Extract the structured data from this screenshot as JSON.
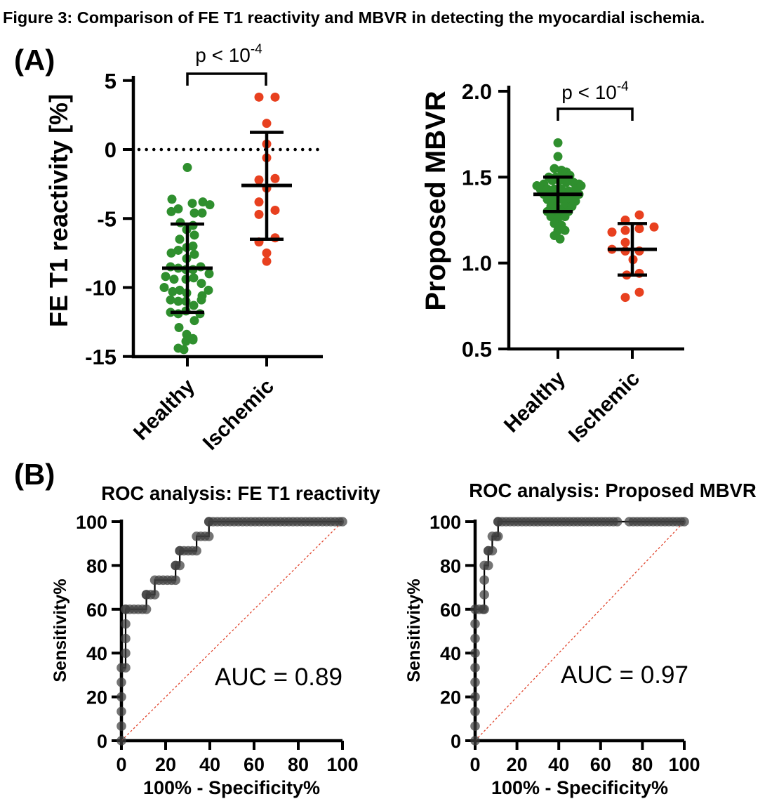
{
  "figure": {
    "title": "Figure 3: Comparison of FE T1 reactivity and MBVR in detecting the myocardial ischemia.",
    "panel_a_label": "(A)",
    "panel_b_label": "(B)"
  },
  "colors": {
    "healthy": "#2f8f2e",
    "ischemic": "#e8401f",
    "roc_dot": "#3f3f3f",
    "diagonal": "#e0442c",
    "axis": "#000000"
  },
  "chart_data": [
    {
      "id": "fet1",
      "type": "scatter",
      "ylabel": "FE T1 reactivity [%]",
      "categories": [
        "Healthy",
        "Ischemic"
      ],
      "yticks": [
        "5",
        "0",
        "-5",
        "-10",
        "-15"
      ],
      "ylim": [
        -15,
        5
      ],
      "zero_reference_line": 0,
      "significance": {
        "text": "p < 10",
        "sup": "-4"
      },
      "groups": [
        {
          "name": "Healthy",
          "color_key": "healthy",
          "median": -8.6,
          "whisker_high": -5.4,
          "whisker_low": -11.8,
          "points": [
            [
              0,
              -1.3
            ],
            [
              -22,
              -3.6
            ],
            [
              7,
              -3.9
            ],
            [
              22,
              -3.8
            ],
            [
              32,
              -4.0
            ],
            [
              -13,
              -4.3
            ],
            [
              -23,
              -4.5
            ],
            [
              10,
              -4.6
            ],
            [
              21,
              -4.6
            ],
            [
              -10,
              -5.3
            ],
            [
              8,
              -5.5
            ],
            [
              -1,
              -5.8
            ],
            [
              10,
              -6.2
            ],
            [
              -11,
              -6.5
            ],
            [
              8,
              -7.0
            ],
            [
              -1,
              -7.1
            ],
            [
              -13,
              -7.3
            ],
            [
              -23,
              -7.5
            ],
            [
              10,
              -7.6
            ],
            [
              -1,
              -7.9
            ],
            [
              -24,
              -8.5
            ],
            [
              -13,
              -8.6
            ],
            [
              -2,
              -8.7
            ],
            [
              8,
              -8.7
            ],
            [
              19,
              -8.5
            ],
            [
              31,
              -9.0
            ],
            [
              -31,
              -9.2
            ],
            [
              -19,
              -9.4
            ],
            [
              -2,
              -9.4
            ],
            [
              9,
              -9.3
            ],
            [
              20,
              -9.7
            ],
            [
              -33,
              -10.0
            ],
            [
              -21,
              -10.3
            ],
            [
              -11,
              -10.2
            ],
            [
              -1,
              -10.4
            ],
            [
              30,
              -10.2
            ],
            [
              21,
              -10.6
            ],
            [
              -24,
              -10.9
            ],
            [
              -13,
              -11.0
            ],
            [
              -2,
              -11.0
            ],
            [
              20,
              -10.9
            ],
            [
              9,
              -11.3
            ],
            [
              -24,
              -11.8
            ],
            [
              -13,
              -11.9
            ],
            [
              -2,
              -11.7
            ],
            [
              18,
              -11.9
            ],
            [
              10,
              -12.4
            ],
            [
              -12,
              -12.9
            ],
            [
              -1,
              -13.4
            ],
            [
              8,
              -13.7
            ],
            [
              -13,
              -14.4
            ],
            [
              -2,
              -13.9
            ],
            [
              8,
              -13.8
            ],
            [
              -5,
              -14.5
            ]
          ]
        },
        {
          "name": "Ischemic",
          "color_key": "ischemic",
          "median": -2.6,
          "whisker_high": 1.25,
          "whisker_low": -6.5,
          "points": [
            [
              -11,
              3.8
            ],
            [
              12,
              3.8
            ],
            [
              0,
              1.9
            ],
            [
              0,
              0.4
            ],
            [
              0,
              -0.6
            ],
            [
              -11,
              -2.2
            ],
            [
              12,
              -2.1
            ],
            [
              0,
              -2.8
            ],
            [
              -11,
              -3.8
            ],
            [
              12,
              -4.4
            ],
            [
              -11,
              -4.7
            ],
            [
              12,
              -6.4
            ],
            [
              -11,
              -6.7
            ],
            [
              0,
              -7.5
            ],
            [
              0,
              -8.1
            ]
          ]
        }
      ]
    },
    {
      "id": "mbvr",
      "type": "scatter",
      "ylabel": "Proposed MBVR",
      "categories": [
        "Healthy",
        "Ischemic"
      ],
      "yticks": [
        "2.0",
        "1.5",
        "1.0",
        "0.5"
      ],
      "ylim": [
        0.5,
        2.0
      ],
      "zero_reference_line": null,
      "significance": {
        "text": "p < 10",
        "sup": "-4"
      },
      "groups": [
        {
          "name": "Healthy",
          "color_key": "healthy",
          "median": 1.4,
          "whisker_high": 1.5,
          "whisker_low": 1.3,
          "points": [
            [
              0,
              1.7
            ],
            [
              0,
              1.62
            ],
            [
              -5,
              1.55
            ],
            [
              5,
              1.54
            ],
            [
              12,
              1.53
            ],
            [
              -13,
              1.5
            ],
            [
              -3,
              1.5
            ],
            [
              7,
              1.5
            ],
            [
              17,
              1.51
            ],
            [
              -8,
              1.48
            ],
            [
              2,
              1.48
            ],
            [
              12,
              1.47
            ],
            [
              22,
              1.47
            ],
            [
              30,
              1.46
            ],
            [
              -30,
              1.45
            ],
            [
              -20,
              1.46
            ],
            [
              -25,
              1.43
            ],
            [
              -15,
              1.43
            ],
            [
              -5,
              1.43
            ],
            [
              5,
              1.43
            ],
            [
              15,
              1.42
            ],
            [
              25,
              1.43
            ],
            [
              33,
              1.45
            ],
            [
              -20,
              1.4
            ],
            [
              -10,
              1.4
            ],
            [
              0,
              1.4
            ],
            [
              10,
              1.39
            ],
            [
              20,
              1.4
            ],
            [
              30,
              1.4
            ],
            [
              -15,
              1.37
            ],
            [
              -5,
              1.36
            ],
            [
              5,
              1.37
            ],
            [
              15,
              1.37
            ],
            [
              25,
              1.36
            ],
            [
              -10,
              1.33
            ],
            [
              0,
              1.32
            ],
            [
              10,
              1.33
            ],
            [
              20,
              1.33
            ],
            [
              -15,
              1.3
            ],
            [
              -5,
              1.29
            ],
            [
              5,
              1.3
            ],
            [
              15,
              1.3
            ],
            [
              -10,
              1.27
            ],
            [
              0,
              1.26
            ],
            [
              10,
              1.27
            ],
            [
              -5,
              1.23
            ],
            [
              5,
              1.22
            ],
            [
              0,
              1.19
            ],
            [
              10,
              1.19
            ],
            [
              -5,
              1.16
            ],
            [
              3,
              1.14
            ]
          ]
        },
        {
          "name": "Ischemic",
          "color_key": "ischemic",
          "median": 1.08,
          "whisker_high": 1.23,
          "whisker_low": 0.93,
          "points": [
            [
              10,
              1.28
            ],
            [
              -10,
              1.25
            ],
            [
              31,
              1.21
            ],
            [
              10,
              1.2
            ],
            [
              -10,
              1.19
            ],
            [
              -29,
              1.18
            ],
            [
              -10,
              1.12
            ],
            [
              -29,
              1.08
            ],
            [
              -10,
              1.07
            ],
            [
              10,
              1.07
            ],
            [
              1,
              1.02
            ],
            [
              -8,
              0.93
            ],
            [
              10,
              0.94
            ],
            [
              -10,
              0.8
            ],
            [
              10,
              0.83
            ]
          ]
        }
      ]
    },
    {
      "id": "roc1",
      "type": "roc",
      "title": "ROC analysis: FE T1 reactivity",
      "xlabel": "100% - Specificity%",
      "ylabel": "Sensitivity%",
      "auc": 0.89,
      "auc_label": "AUC = 0.89",
      "xticks": [
        0,
        20,
        40,
        60,
        80,
        100
      ],
      "yticks": [
        0,
        20,
        40,
        60,
        80,
        100
      ],
      "xlim": [
        0,
        100
      ],
      "ylim": [
        0,
        100
      ],
      "diagonal": true,
      "curve": [
        [
          0,
          0
        ],
        [
          0,
          33.3
        ],
        [
          1.9,
          33.3
        ],
        [
          1.9,
          60
        ],
        [
          11.3,
          60
        ],
        [
          11.3,
          66.7
        ],
        [
          15.1,
          66.7
        ],
        [
          15.1,
          73.3
        ],
        [
          24.5,
          73.3
        ],
        [
          24.5,
          80
        ],
        [
          26.4,
          80
        ],
        [
          26.4,
          86.7
        ],
        [
          34,
          86.7
        ],
        [
          34,
          93.3
        ],
        [
          39.6,
          93.3
        ],
        [
          39.6,
          100
        ],
        [
          100,
          100
        ]
      ]
    },
    {
      "id": "roc2",
      "type": "roc",
      "title": "ROC analysis: Proposed MBVR",
      "xlabel": "100% - Specificity%",
      "ylabel": "Sensitivity%",
      "auc": 0.97,
      "auc_label": "AUC = 0.97",
      "xticks": [
        0,
        20,
        40,
        60,
        80,
        100
      ],
      "yticks": [
        0,
        20,
        40,
        60,
        80,
        100
      ],
      "xlim": [
        0,
        100
      ],
      "ylim": [
        0,
        100
      ],
      "diagonal": true,
      "dot_gap": [
        69,
        72.5
      ],
      "curve": [
        [
          0,
          0
        ],
        [
          0,
          60
        ],
        [
          4.4,
          60
        ],
        [
          4.4,
          80
        ],
        [
          6.3,
          80
        ],
        [
          6.3,
          86.7
        ],
        [
          8.2,
          86.7
        ],
        [
          8.2,
          93.3
        ],
        [
          11,
          93.3
        ],
        [
          11,
          100
        ],
        [
          100,
          100
        ]
      ]
    }
  ]
}
